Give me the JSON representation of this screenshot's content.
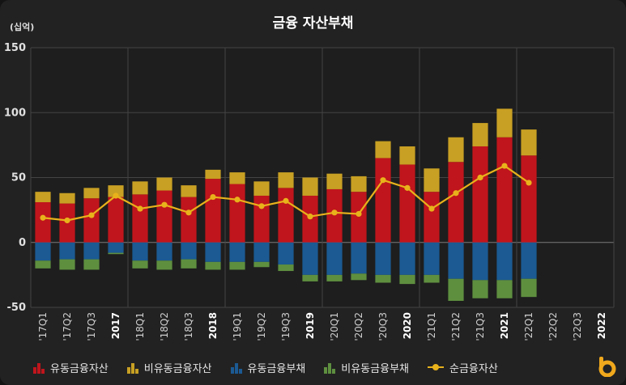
{
  "chart_data": {
    "type": "bar",
    "title": "금융 자산부채",
    "unit_label": "(십억)",
    "ylim": [
      -50,
      150
    ],
    "yticks": [
      -50,
      0,
      50,
      100,
      150
    ],
    "grid": true,
    "legend_position": "bottom",
    "categories": [
      "'17Q1",
      "'17Q2",
      "'17Q3",
      "2017",
      "'18Q1",
      "'18Q2",
      "'18Q3",
      "2018",
      "'19Q1",
      "'19Q2",
      "'19Q3",
      "2019",
      "'20Q1",
      "'20Q2",
      "'20Q3",
      "2020",
      "'21Q1",
      "'21Q2",
      "'21Q3",
      "2021",
      "'22Q1",
      "'22Q2",
      "'22Q3",
      "2022"
    ],
    "bold_categories": [
      "2017",
      "2018",
      "2019",
      "2020",
      "2021",
      "2022"
    ],
    "series": [
      {
        "name": "유동금융자산",
        "kind": "bar",
        "color": "#c0151c",
        "values": [
          31,
          30,
          34,
          35,
          37,
          40,
          35,
          49,
          45,
          36,
          42,
          36,
          41,
          39,
          65,
          60,
          39,
          62,
          74,
          81,
          67,
          null,
          null,
          null
        ]
      },
      {
        "name": "비유동금융자산",
        "kind": "bar",
        "color": "#c8a023",
        "values": [
          8,
          8,
          8,
          9,
          10,
          10,
          9,
          7,
          9,
          11,
          12,
          14,
          12,
          12,
          13,
          14,
          18,
          19,
          18,
          22,
          20,
          null,
          null,
          null
        ]
      },
      {
        "name": "유동금융부채",
        "kind": "bar",
        "color": "#1b5a93",
        "values": [
          -14,
          -13,
          -13,
          -8,
          -14,
          -14,
          -13,
          -15,
          -15,
          -15,
          -17,
          -25,
          -25,
          -24,
          -25,
          -25,
          -25,
          -28,
          -29,
          -29,
          -28,
          null,
          null,
          null
        ]
      },
      {
        "name": "비유동금융부채",
        "kind": "bar",
        "color": "#5e8f3f",
        "values": [
          -6,
          -8,
          -8,
          -1,
          -6,
          -7,
          -7,
          -6,
          -6,
          -4,
          -5,
          -5,
          -5,
          -5,
          -6,
          -7,
          -6,
          -17,
          -14,
          -14,
          -14,
          null,
          null,
          null
        ]
      },
      {
        "name": "순금융자산",
        "kind": "line",
        "color": "#e8b21b",
        "values": [
          19,
          17,
          21,
          36,
          26,
          29,
          23,
          35,
          33,
          28,
          32,
          20,
          23,
          22,
          48,
          42,
          26,
          38,
          50,
          59,
          46,
          null,
          null,
          null
        ]
      }
    ]
  }
}
